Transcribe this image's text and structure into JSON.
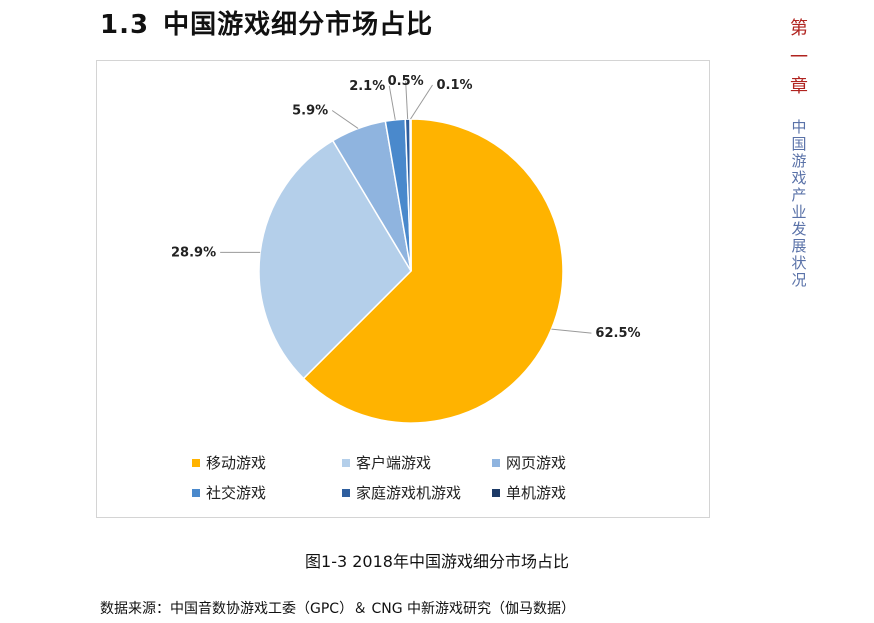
{
  "section": {
    "number": "1.3",
    "title": "中国游戏细分市场占比"
  },
  "side_tab": {
    "chapter_chars": [
      "第",
      "一",
      "章"
    ],
    "subtitle_chars": [
      "中",
      "国",
      "游",
      "戏",
      "产",
      "业",
      "发",
      "展",
      "状",
      "况"
    ]
  },
  "caption": "图1-3  2018年中国游戏细分市场占比",
  "source": "数据来源：中国音数协游戏工委（GPC）＆ CNG 中新游戏研究（伽马数据）",
  "chart_data": {
    "type": "pie",
    "title": "",
    "legend_position": "bottom",
    "slices": [
      {
        "name": "移动游戏",
        "value": 62.5,
        "label": "62.5%",
        "color": "#FFB300"
      },
      {
        "name": "客户端游戏",
        "value": 28.9,
        "label": "28.9%",
        "color": "#B4CFEA"
      },
      {
        "name": "网页游戏",
        "value": 5.9,
        "label": "5.9%",
        "color": "#8FB4DF"
      },
      {
        "name": "社交游戏",
        "value": 2.1,
        "label": "2.1%",
        "color": "#4A89CC"
      },
      {
        "name": "家庭游戏机游戏",
        "value": 0.5,
        "label": "0.5%",
        "color": "#2E5E9E"
      },
      {
        "name": "单机游戏",
        "value": 0.1,
        "label": "0.1%",
        "color": "#1C3A66"
      }
    ]
  }
}
